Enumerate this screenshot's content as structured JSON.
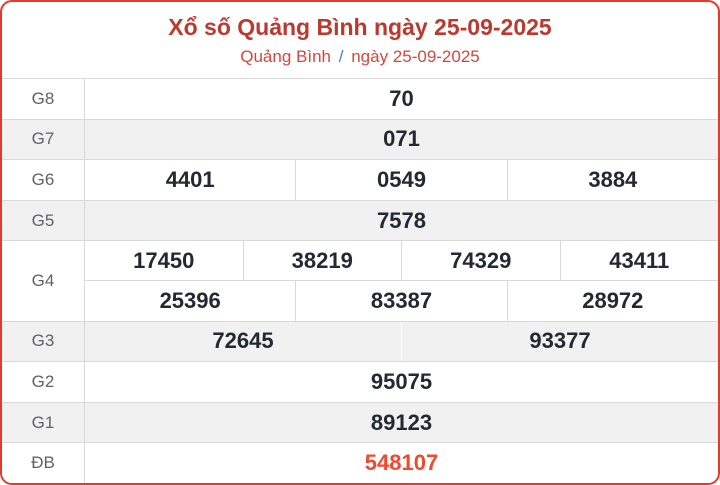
{
  "header": {
    "title": "Xổ số Quảng Bình ngày 25-09-2025",
    "breadcrumb": {
      "region": "Quảng Bình",
      "separator": "/",
      "date": "ngày 25-09-2025"
    }
  },
  "results": {
    "rows": [
      {
        "label": "G8",
        "groups": [
          [
            "70"
          ]
        ]
      },
      {
        "label": "G7",
        "groups": [
          [
            "071"
          ]
        ]
      },
      {
        "label": "G6",
        "groups": [
          [
            "4401",
            "0549",
            "3884"
          ]
        ]
      },
      {
        "label": "G5",
        "groups": [
          [
            "7578"
          ]
        ]
      },
      {
        "label": "G4",
        "groups": [
          [
            "17450",
            "38219",
            "74329",
            "43411"
          ],
          [
            "25396",
            "83387",
            "28972"
          ]
        ]
      },
      {
        "label": "G3",
        "groups": [
          [
            "72645",
            "93377"
          ]
        ]
      },
      {
        "label": "G2",
        "groups": [
          [
            "95075"
          ]
        ]
      },
      {
        "label": "G1",
        "groups": [
          [
            "89123"
          ]
        ]
      },
      {
        "label": "ĐB",
        "groups": [
          [
            "548107"
          ]
        ],
        "special": true
      }
    ]
  },
  "colors": {
    "title": "#bc392e",
    "subtitle": "#d3483e",
    "separator": "#4a7cc2",
    "special_number": "#ef4a2e",
    "card_border": "#e23a2c",
    "stripe": "#f1f1f1",
    "cell_border": "#d9d9d9",
    "number": "#232833",
    "label": "#606266"
  }
}
